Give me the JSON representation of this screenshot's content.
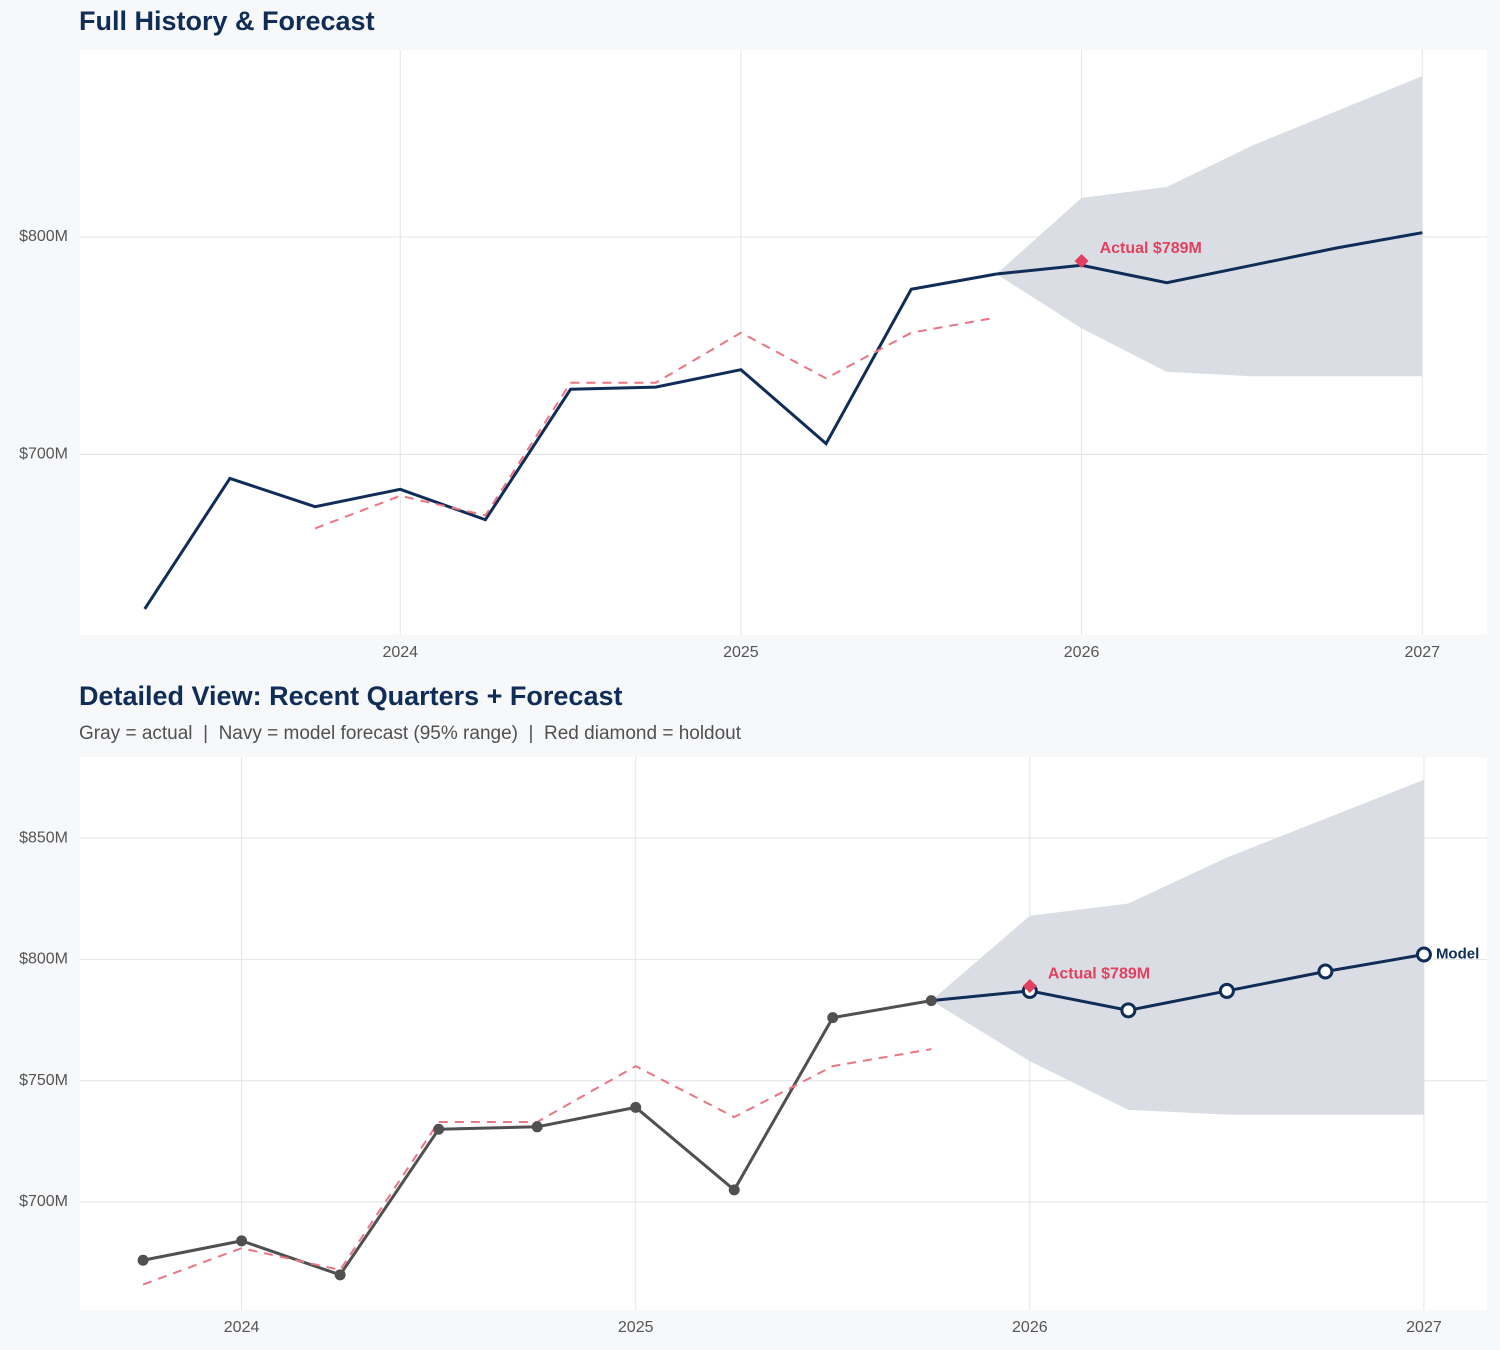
{
  "chart_data": [
    {
      "type": "line",
      "title": "Full History & Forecast",
      "xlim": [
        2023.06,
        2027.19
      ],
      "xticks": [
        2024,
        2025,
        2026,
        2027
      ],
      "ylim": [
        617,
        886
      ],
      "yticks": [
        {
          "value": 700,
          "label": "$700M"
        },
        {
          "value": 800,
          "label": "$800M"
        }
      ],
      "grid": true,
      "band": {
        "x": [
          2025.75,
          2026,
          2026.25,
          2026.5,
          2026.75,
          2027
        ],
        "lower": [
          783,
          758,
          738,
          736,
          736,
          736
        ],
        "upper": [
          783,
          818,
          823,
          842,
          858,
          874
        ],
        "color": "#dadee4"
      },
      "series": [
        {
          "x": [
            2023.25,
            2023.5,
            2023.75,
            2024,
            2024.25,
            2024.5,
            2024.75,
            2025,
            2025.25,
            2025.5,
            2025.75
          ],
          "values": [
            629,
            689,
            676,
            684,
            670,
            730,
            731,
            739,
            705,
            776,
            783
          ],
          "color": "#0f2d57",
          "style": "solid",
          "markers": "none"
        },
        {
          "x": [
            2023.75,
            2024,
            2024.25,
            2024.5,
            2024.75,
            2025,
            2025.25,
            2025.5,
            2025.75
          ],
          "values": [
            666,
            681,
            672,
            733,
            733,
            756,
            735,
            756,
            763
          ],
          "color": "#ec7585",
          "style": "dashed",
          "markers": "none"
        },
        {
          "x": [
            2025.75,
            2026,
            2026.25,
            2026.5,
            2026.75,
            2027
          ],
          "values": [
            783,
            787,
            779,
            787,
            795,
            802
          ],
          "color": "#0f2d57",
          "style": "solid",
          "markers": "none"
        }
      ],
      "holdout": {
        "x": 2026,
        "value": 789,
        "label": "Actual $789M",
        "color": "#e2405f"
      }
    },
    {
      "type": "line",
      "title": "Detailed View: Recent Quarters + Forecast",
      "subtitle": "Gray = actual  |  Navy = model forecast (95% range)  |  Red diamond = holdout",
      "xlim": [
        2023.59,
        2027.16
      ],
      "xticks": [
        2024,
        2025,
        2026,
        2027
      ],
      "ylim": [
        655.5,
        883.4
      ],
      "yticks": [
        {
          "value": 700,
          "label": "$700M"
        },
        {
          "value": 750,
          "label": "$750M"
        },
        {
          "value": 800,
          "label": "$800M"
        },
        {
          "value": 850,
          "label": "$850M"
        }
      ],
      "grid": true,
      "band": {
        "x": [
          2025.75,
          2026,
          2026.25,
          2026.5,
          2026.75,
          2027
        ],
        "lower": [
          783,
          758,
          738,
          736,
          736,
          736
        ],
        "upper": [
          783,
          818,
          823,
          842,
          858,
          874
        ],
        "color": "#dadee4"
      },
      "series": [
        {
          "x": [
            2023.75,
            2024,
            2024.25,
            2024.5,
            2024.75,
            2025,
            2025.25,
            2025.5,
            2025.75
          ],
          "values": [
            676,
            684,
            670,
            730,
            731,
            739,
            705,
            776,
            783
          ],
          "color": "#505050",
          "style": "solid",
          "markers": "filled"
        },
        {
          "x": [
            2023.75,
            2024,
            2024.25,
            2024.5,
            2024.75,
            2025,
            2025.25,
            2025.5,
            2025.75
          ],
          "values": [
            666,
            681,
            672,
            733,
            733,
            756,
            735,
            756,
            763
          ],
          "color": "#ec7585",
          "style": "dashed",
          "markers": "none"
        },
        {
          "name": "Model",
          "x": [
            2025.75,
            2026,
            2026.25,
            2026.5,
            2026.75,
            2027
          ],
          "values": [
            783,
            787,
            779,
            787,
            795,
            802
          ],
          "color": "#0f2d57",
          "style": "solid",
          "markers": "open"
        }
      ],
      "holdout": {
        "x": 2026,
        "value": 789,
        "label": "Actual $789M",
        "color": "#e2405f"
      }
    }
  ]
}
